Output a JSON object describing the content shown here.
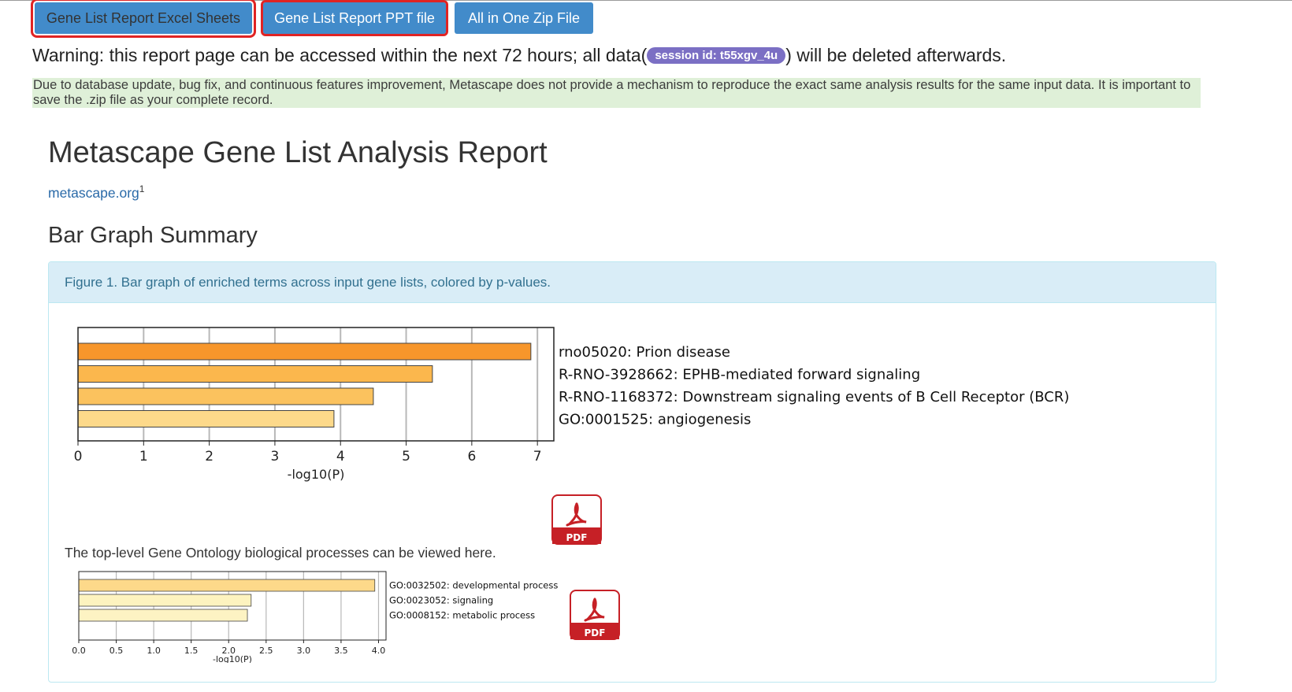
{
  "buttons": {
    "excel": "Gene List Report Excel Sheets",
    "ppt": "Gene List Report PPT file",
    "zip": "All in One Zip File"
  },
  "warning": {
    "prefix": "Warning: this report page can be accessed within the next 72 hours; all data(",
    "session": "session id: t55xgv_4u",
    "suffix": ") will be deleted afterwards."
  },
  "notice": "Due to database update, bug fix, and continuous features improvement, Metascape does not provide a mechanism to reproduce the exact same analysis results for the same input data. It is important to save the .zip file as your complete record.",
  "report": {
    "title": "Metascape Gene List Analysis Report",
    "link": "metascape.org",
    "link_sup": "1",
    "section": "Bar Graph Summary",
    "figure_caption": "Figure 1. Bar graph of enriched terms across input gene lists, colored by p-values.",
    "go_caption": "The top-level Gene Ontology biological processes can be viewed here.",
    "pdf_label": "PDF"
  },
  "chart_data": [
    {
      "type": "bar",
      "orientation": "horizontal",
      "categories": [
        "rno05020: Prion disease",
        "R-RNO-3928662: EPHB-mediated forward signaling",
        "R-RNO-1168372: Downstream signaling events of B Cell Receptor (BCR)",
        "GO:0001525: angiogenesis"
      ],
      "values": [
        6.9,
        5.4,
        4.5,
        3.9
      ],
      "colors": [
        "#f7962b",
        "#fbb74d",
        "#fbc25e",
        "#fdd98a"
      ],
      "xlabel": "-log10(P)",
      "xlim": [
        0,
        7.25
      ],
      "xticks": [
        "0",
        "1",
        "2",
        "3",
        "4",
        "5",
        "6",
        "7"
      ],
      "grid": true
    },
    {
      "type": "bar",
      "orientation": "horizontal",
      "categories": [
        "GO:0032502: developmental process",
        "GO:0023052: signaling",
        "GO:0008152: metabolic process"
      ],
      "values": [
        3.95,
        2.3,
        2.25
      ],
      "colors": [
        "#fdd98a",
        "#fdf3bf",
        "#fdf3c3"
      ],
      "xlabel": "-log10(P)",
      "xlim": [
        0,
        4.1
      ],
      "xticks": [
        "0.0",
        "0.5",
        "1.0",
        "1.5",
        "2.0",
        "2.5",
        "3.0",
        "3.5",
        "4.0"
      ],
      "grid": true
    }
  ]
}
